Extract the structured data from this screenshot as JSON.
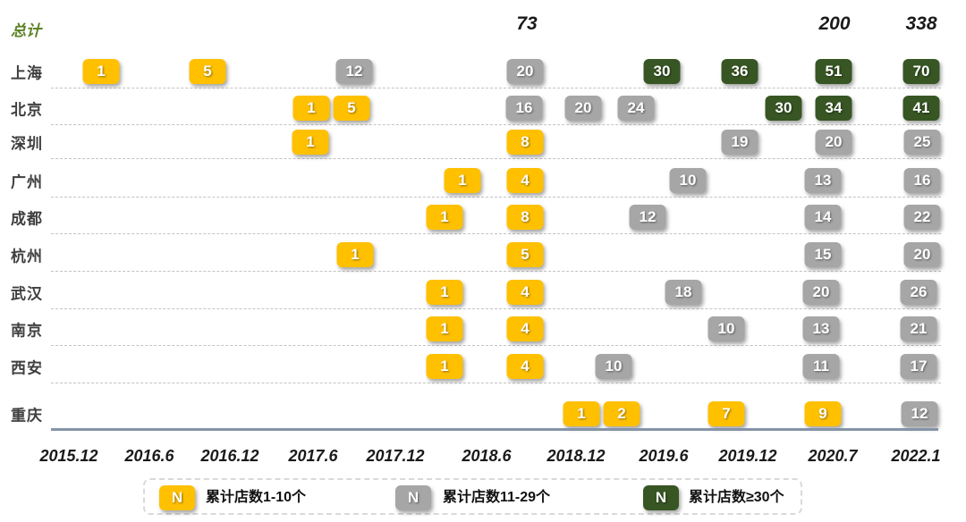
{
  "header": {
    "total_label": "总计",
    "totals": [
      "73",
      "200",
      "338"
    ]
  },
  "colors": {
    "low": "#FFC000",
    "mid": "#A6A6A6",
    "high": "#375623",
    "total_green": "#5c8326"
  },
  "chart_data": {
    "type": "table",
    "title": "",
    "x": [
      "2015.12",
      "2016.6",
      "2016.12",
      "2017.6",
      "2017.12",
      "2018.6",
      "2018.12",
      "2019.6",
      "2019.12",
      "2020.7",
      "2022.1"
    ],
    "totals_row": {
      "label": "总计",
      "values": {
        "2018.6": 73,
        "2020.7": 200,
        "2022.1": 338
      }
    },
    "series": [
      {
        "name": "上海",
        "values": [
          {
            "v": "1",
            "tier": "low"
          },
          {
            "v": "5",
            "tier": "low"
          },
          {
            "v": "12",
            "tier": "mid"
          },
          {
            "v": "20",
            "tier": "mid"
          },
          {
            "v": "30",
            "tier": "high"
          },
          {
            "v": "36",
            "tier": "high"
          },
          {
            "v": "51",
            "tier": "high"
          },
          {
            "v": "70",
            "tier": "high"
          }
        ]
      },
      {
        "name": "北京",
        "values": [
          {
            "v": "1",
            "tier": "low"
          },
          {
            "v": "5",
            "tier": "low"
          },
          {
            "v": "16",
            "tier": "mid"
          },
          {
            "v": "20",
            "tier": "mid"
          },
          {
            "v": "24",
            "tier": "mid"
          },
          {
            "v": "30",
            "tier": "high"
          },
          {
            "v": "34",
            "tier": "high"
          },
          {
            "v": "41",
            "tier": "high"
          }
        ]
      },
      {
        "name": "深圳",
        "values": [
          {
            "v": "1",
            "tier": "low"
          },
          {
            "v": "8",
            "tier": "low"
          },
          {
            "v": "19",
            "tier": "mid"
          },
          {
            "v": "20",
            "tier": "mid"
          },
          {
            "v": "25",
            "tier": "mid"
          }
        ]
      },
      {
        "name": "广州",
        "values": [
          {
            "v": "1",
            "tier": "low"
          },
          {
            "v": "4",
            "tier": "low"
          },
          {
            "v": "10",
            "tier": "mid"
          },
          {
            "v": "13",
            "tier": "mid"
          },
          {
            "v": "16",
            "tier": "mid"
          }
        ]
      },
      {
        "name": "成都",
        "values": [
          {
            "v": "1",
            "tier": "low"
          },
          {
            "v": "8",
            "tier": "low"
          },
          {
            "v": "12",
            "tier": "mid"
          },
          {
            "v": "14",
            "tier": "mid"
          },
          {
            "v": "22",
            "tier": "mid"
          }
        ]
      },
      {
        "name": "杭州",
        "values": [
          {
            "v": "1",
            "tier": "low"
          },
          {
            "v": "5",
            "tier": "low"
          },
          {
            "v": "15",
            "tier": "mid"
          },
          {
            "v": "20",
            "tier": "mid"
          }
        ]
      },
      {
        "name": "武汉",
        "values": [
          {
            "v": "1",
            "tier": "low"
          },
          {
            "v": "4",
            "tier": "low"
          },
          {
            "v": "18",
            "tier": "mid"
          },
          {
            "v": "20",
            "tier": "mid"
          },
          {
            "v": "26",
            "tier": "mid"
          }
        ]
      },
      {
        "name": "南京",
        "values": [
          {
            "v": "1",
            "tier": "low"
          },
          {
            "v": "4",
            "tier": "low"
          },
          {
            "v": "10",
            "tier": "mid"
          },
          {
            "v": "13",
            "tier": "mid"
          },
          {
            "v": "21",
            "tier": "mid"
          }
        ]
      },
      {
        "name": "西安",
        "values": [
          {
            "v": "1",
            "tier": "low"
          },
          {
            "v": "4",
            "tier": "low"
          },
          {
            "v": "10",
            "tier": "mid"
          },
          {
            "v": "11",
            "tier": "mid"
          },
          {
            "v": "17",
            "tier": "mid"
          }
        ]
      },
      {
        "name": "重庆",
        "values": [
          {
            "v": "1",
            "tier": "low"
          },
          {
            "v": "2",
            "tier": "low"
          },
          {
            "v": "7",
            "tier": "low"
          },
          {
            "v": "9",
            "tier": "low"
          },
          {
            "v": "12",
            "tier": "mid"
          }
        ]
      }
    ],
    "legend": [
      {
        "badge": "N",
        "tier": "low",
        "label": "累计店数1-10个"
      },
      {
        "badge": "N",
        "tier": "mid",
        "label": "累计店数11-29个"
      },
      {
        "badge": "N",
        "tier": "high",
        "label": "累计店数≥30个"
      }
    ]
  }
}
